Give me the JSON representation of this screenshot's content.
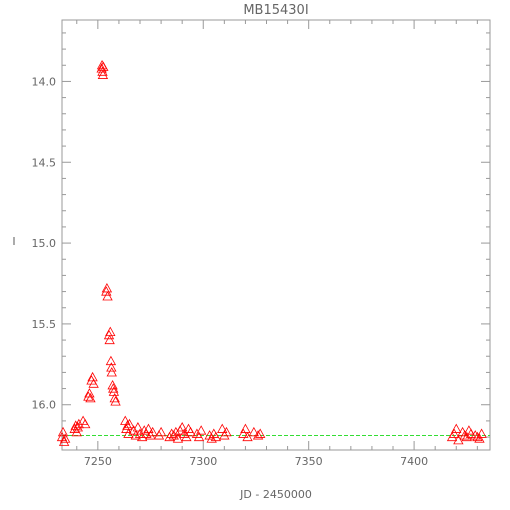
{
  "chart_data": {
    "type": "scatter",
    "title": "MB15430I",
    "xlabel": "JD - 2450000",
    "ylabel": "I",
    "xlim": [
      7233,
      7436
    ],
    "ylim": [
      16.28,
      13.62
    ],
    "y_inverted": true,
    "x_ticks": [
      7250,
      7300,
      7350,
      7400
    ],
    "x_tick_labels": [
      "7250",
      "7300",
      "7350",
      "7400"
    ],
    "y_ticks": [
      14.0,
      14.5,
      15.0,
      15.5,
      16.0
    ],
    "y_tick_labels": [
      "14.0",
      "14.5",
      "15.0",
      "15.5",
      "16.0"
    ],
    "marker": "triangle-open",
    "colors": {
      "points": "#ff0000",
      "baseline": "#33dd33",
      "axes": "#999999",
      "text": "#666666"
    },
    "baseline": {
      "y": 16.19,
      "x": [
        7233,
        7436
      ]
    },
    "points": [
      [
        7233,
        16.2
      ],
      [
        7233.5,
        16.17
      ],
      [
        7234,
        16.23
      ],
      [
        7234.5,
        16.21
      ],
      [
        7239,
        16.15
      ],
      [
        7239.5,
        16.13
      ],
      [
        7240,
        16.17
      ],
      [
        7240.5,
        16.14
      ],
      [
        7241,
        16.12
      ],
      [
        7243,
        16.1
      ],
      [
        7244,
        16.12
      ],
      [
        7245.5,
        15.95
      ],
      [
        7246,
        15.93
      ],
      [
        7246.5,
        15.96
      ],
      [
        7247,
        15.85
      ],
      [
        7247.5,
        15.83
      ],
      [
        7248,
        15.87
      ],
      [
        7251.8,
        13.92
      ],
      [
        7252,
        13.9
      ],
      [
        7252.2,
        13.94
      ],
      [
        7252.4,
        13.96
      ],
      [
        7252.6,
        13.91
      ],
      [
        7254,
        15.3
      ],
      [
        7254.3,
        15.28
      ],
      [
        7254.6,
        15.33
      ],
      [
        7255.3,
        15.57
      ],
      [
        7255.6,
        15.6
      ],
      [
        7255.9,
        15.55
      ],
      [
        7256.2,
        15.73
      ],
      [
        7256.4,
        15.77
      ],
      [
        7256.6,
        15.8
      ],
      [
        7257,
        15.88
      ],
      [
        7257.3,
        15.9
      ],
      [
        7257.6,
        15.92
      ],
      [
        7258,
        15.96
      ],
      [
        7258.4,
        15.98
      ],
      [
        7263,
        16.1
      ],
      [
        7263.5,
        16.15
      ],
      [
        7264,
        16.13
      ],
      [
        7264.5,
        16.18
      ],
      [
        7265,
        16.12
      ],
      [
        7267,
        16.16
      ],
      [
        7268,
        16.19
      ],
      [
        7269,
        16.14
      ],
      [
        7270,
        16.18
      ],
      [
        7271,
        16.2
      ],
      [
        7272,
        16.16
      ],
      [
        7273,
        16.18
      ],
      [
        7274,
        16.15
      ],
      [
        7275,
        16.19
      ],
      [
        7276,
        16.17
      ],
      [
        7279,
        16.19
      ],
      [
        7280,
        16.17
      ],
      [
        7284,
        16.2
      ],
      [
        7285,
        16.18
      ],
      [
        7286,
        16.19
      ],
      [
        7287,
        16.17
      ],
      [
        7288,
        16.21
      ],
      [
        7289,
        16.16
      ],
      [
        7290,
        16.14
      ],
      [
        7291,
        16.18
      ],
      [
        7292,
        16.2
      ],
      [
        7293,
        16.15
      ],
      [
        7294,
        16.17
      ],
      [
        7297,
        16.18
      ],
      [
        7298,
        16.2
      ],
      [
        7299,
        16.16
      ],
      [
        7303,
        16.19
      ],
      [
        7304,
        16.21
      ],
      [
        7305,
        16.18
      ],
      [
        7306,
        16.2
      ],
      [
        7309,
        16.15
      ],
      [
        7310,
        16.19
      ],
      [
        7311,
        16.17
      ],
      [
        7319,
        16.18
      ],
      [
        7320,
        16.15
      ],
      [
        7321,
        16.2
      ],
      [
        7324,
        16.17
      ],
      [
        7326,
        16.19
      ],
      [
        7327,
        16.18
      ],
      [
        7418,
        16.2
      ],
      [
        7419,
        16.18
      ],
      [
        7420,
        16.15
      ],
      [
        7421,
        16.22
      ],
      [
        7423,
        16.17
      ],
      [
        7424,
        16.19
      ],
      [
        7425,
        16.2
      ],
      [
        7426,
        16.16
      ],
      [
        7427,
        16.18
      ],
      [
        7429,
        16.19
      ],
      [
        7430,
        16.2
      ],
      [
        7431,
        16.21
      ],
      [
        7432,
        16.18
      ]
    ]
  }
}
